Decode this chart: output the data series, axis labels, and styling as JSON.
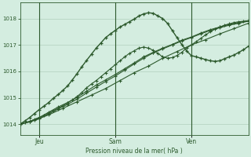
{
  "background_color": "#d4ede0",
  "grid_color": "#a8c8b4",
  "line_color": "#2d5a2d",
  "title": "Pression niveau de la mer( hPa )",
  "xlabel_ticks": [
    "Jeu",
    "Sam",
    "Ven"
  ],
  "ylim": [
    1013.6,
    1018.6
  ],
  "yticks": [
    1014,
    1015,
    1016,
    1017,
    1018
  ],
  "xlim": [
    0,
    48
  ],
  "vline_x": [
    4,
    20,
    36
  ],
  "smooth1_x": [
    0,
    1,
    2,
    3,
    4,
    5,
    6,
    7,
    8,
    9,
    10,
    11,
    12,
    13,
    14,
    15,
    16,
    17,
    18,
    19,
    20,
    21,
    22,
    23,
    24,
    25,
    26,
    27,
    28,
    29,
    30,
    31,
    32,
    33,
    34,
    35,
    36,
    37,
    38,
    39,
    40,
    41,
    42,
    43,
    44,
    45,
    46,
    47,
    48
  ],
  "smooth1_y": [
    1014.0,
    1014.05,
    1014.1,
    1014.18,
    1014.25,
    1014.32,
    1014.42,
    1014.52,
    1014.6,
    1014.7,
    1014.8,
    1014.92,
    1015.05,
    1015.2,
    1015.38,
    1015.52,
    1015.65,
    1015.8,
    1015.95,
    1016.1,
    1016.25,
    1016.4,
    1016.55,
    1016.68,
    1016.78,
    1016.88,
    1016.92,
    1016.88,
    1016.8,
    1016.68,
    1016.55,
    1016.5,
    1016.52,
    1016.6,
    1016.72,
    1016.88,
    1017.0,
    1017.12,
    1017.25,
    1017.38,
    1017.5,
    1017.6,
    1017.68,
    1017.75,
    1017.8,
    1017.85,
    1017.88,
    1017.9,
    1017.92
  ],
  "smooth2_x": [
    0,
    3,
    6,
    9,
    12,
    15,
    18,
    21,
    24,
    27,
    30,
    33,
    36,
    39,
    42,
    45,
    48
  ],
  "smooth2_y": [
    1014.0,
    1014.15,
    1014.35,
    1014.6,
    1014.85,
    1015.1,
    1015.35,
    1015.65,
    1015.95,
    1016.2,
    1016.5,
    1016.75,
    1017.0,
    1017.2,
    1017.42,
    1017.62,
    1017.82
  ],
  "smooth3_x": [
    0,
    2,
    4,
    6,
    8,
    10,
    12,
    14,
    16,
    18,
    20,
    22,
    24,
    26,
    28,
    30,
    32,
    34,
    36,
    38,
    40,
    42,
    44,
    46,
    48
  ],
  "smooth3_y": [
    1014.0,
    1014.08,
    1014.2,
    1014.38,
    1014.58,
    1014.75,
    1014.95,
    1015.18,
    1015.4,
    1015.62,
    1015.82,
    1016.05,
    1016.28,
    1016.5,
    1016.7,
    1016.85,
    1017.0,
    1017.15,
    1017.28,
    1017.42,
    1017.55,
    1017.65,
    1017.75,
    1017.82,
    1017.9
  ],
  "smooth4_x": [
    0,
    2,
    4,
    6,
    8,
    10,
    12,
    14,
    16,
    18,
    20,
    22,
    24,
    26,
    28,
    30,
    32,
    34,
    36,
    38,
    40,
    42,
    44,
    46,
    48
  ],
  "smooth4_y": [
    1014.0,
    1014.1,
    1014.25,
    1014.45,
    1014.65,
    1014.82,
    1015.02,
    1015.25,
    1015.48,
    1015.68,
    1015.88,
    1016.1,
    1016.32,
    1016.55,
    1016.72,
    1016.88,
    1017.02,
    1017.18,
    1017.3,
    1017.45,
    1017.58,
    1017.68,
    1017.78,
    1017.85,
    1017.92
  ],
  "spiky_x": [
    0,
    1,
    2,
    3,
    4,
    5,
    6,
    7,
    8,
    9,
    10,
    11,
    12,
    13,
    14,
    15,
    16,
    17,
    18,
    19,
    20,
    21,
    22,
    23,
    24,
    25,
    26,
    27,
    28,
    29,
    30,
    31,
    32,
    33,
    34,
    35,
    36,
    37,
    38,
    39,
    40,
    41,
    42,
    43,
    44,
    45,
    46,
    47,
    48
  ],
  "spiky_y": [
    1014.0,
    1014.12,
    1014.25,
    1014.4,
    1014.55,
    1014.68,
    1014.82,
    1014.98,
    1015.12,
    1015.28,
    1015.45,
    1015.68,
    1015.92,
    1016.18,
    1016.42,
    1016.65,
    1016.88,
    1017.08,
    1017.28,
    1017.42,
    1017.55,
    1017.68,
    1017.78,
    1017.88,
    1017.98,
    1018.1,
    1018.18,
    1018.22,
    1018.2,
    1018.1,
    1018.0,
    1017.82,
    1017.55,
    1017.28,
    1017.02,
    1016.78,
    1016.6,
    1016.55,
    1016.5,
    1016.45,
    1016.4,
    1016.38,
    1016.4,
    1016.48,
    1016.55,
    1016.62,
    1016.72,
    1016.82,
    1016.95
  ]
}
